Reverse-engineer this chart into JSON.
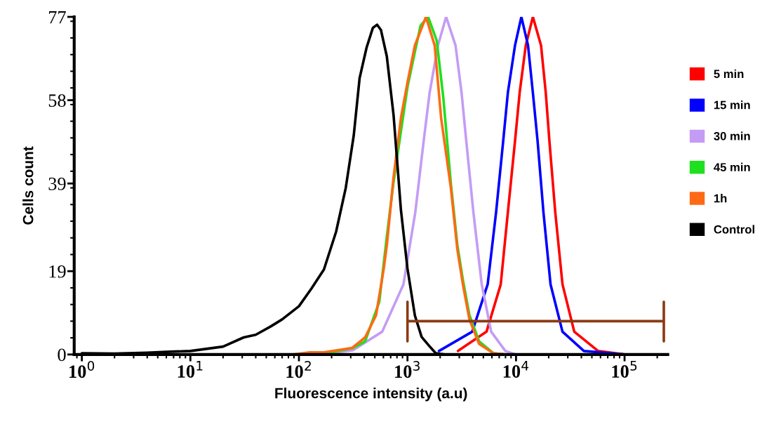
{
  "chart_data": {
    "type": "line",
    "xlabel": "Fluorescence intensity (a.u)",
    "ylabel": "Cells count",
    "log": "x",
    "legend": "right",
    "grid": false,
    "xlim": [
      0.85,
      250000
    ],
    "xticks": [
      {
        "value": 1,
        "label": "10$^{0}$"
      },
      {
        "value": 10,
        "label": "10$^{1}$"
      },
      {
        "value": 100,
        "label": "10$^{2}$"
      },
      {
        "value": 1000,
        "label": "10$^{3}$"
      },
      {
        "value": 10000,
        "label": "10$^{4}$"
      },
      {
        "value": 100000,
        "label": "10$^{5}$"
      }
    ],
    "ylim": [
      0,
      77
    ],
    "yticks": [
      0,
      19,
      39,
      58,
      77
    ],
    "series": [
      {
        "name": "5 min",
        "color": "#ff0000",
        "x": [
          2920,
          5350,
          7230,
          8410,
          9790,
          10800,
          12300,
          14300,
          17000,
          18800,
          20300,
          23000,
          26800,
          34400,
          57000,
          100000
        ],
        "values": [
          0.8,
          5.2,
          16,
          32.4,
          48.7,
          59.7,
          70.5,
          77,
          70.5,
          59.7,
          48.7,
          32.4,
          16,
          5.2,
          0.8,
          0
        ]
      },
      {
        "name": "15 min",
        "color": "#0000ff",
        "x": [
          1950,
          3950,
          5480,
          6550,
          7620,
          8410,
          9790,
          11200,
          12900,
          14300,
          15800,
          17900,
          20800,
          26800,
          42200,
          100000
        ],
        "values": [
          0.8,
          5.2,
          16,
          32.4,
          48.7,
          59.7,
          70.5,
          77,
          70.5,
          59.7,
          48.7,
          32.4,
          16,
          5.2,
          0.8,
          0
        ]
      },
      {
        "name": "30 min",
        "color": "#c49cf4",
        "x": [
          158,
          316,
          585,
          918,
          1180,
          1410,
          1600,
          1910,
          2270,
          2770,
          3150,
          3480,
          4050,
          4830,
          5900,
          7980,
          10000
        ],
        "values": [
          0,
          1,
          5.2,
          16,
          32.4,
          48.7,
          59.7,
          70.5,
          77,
          70.5,
          59.7,
          48.7,
          32.4,
          16,
          5.2,
          0.8,
          0
        ]
      },
      {
        "name": "45 min",
        "color": "#1ee01e",
        "x": [
          126,
          200,
          316,
          407,
          550,
          646,
          741,
          871,
          1000,
          1170,
          1320,
          1550,
          1860,
          2140,
          2510,
          2880,
          3240,
          3720,
          4570,
          6170,
          7940
        ],
        "values": [
          0,
          0.5,
          1.5,
          3,
          12,
          27,
          39,
          51,
          61,
          69,
          75,
          77,
          71.6,
          58.5,
          39,
          25,
          17,
          9,
          3,
          0.3,
          0
        ]
      },
      {
        "name": "1h",
        "color": "#ff6a14",
        "x": [
          89,
          126,
          170,
          309,
          407,
          513,
          603,
          646,
          741,
          871,
          1000,
          1170,
          1480,
          1780,
          2040,
          2510,
          2880,
          3240,
          3720,
          4570,
          6170,
          7940
        ],
        "values": [
          0,
          0.5,
          0.5,
          1.5,
          3.9,
          8.9,
          19.4,
          25,
          40,
          54,
          62,
          70.5,
          77,
          70.5,
          54,
          38,
          24,
          16,
          8,
          2.4,
          0.3,
          0
        ]
      },
      {
        "name": "Control",
        "color": "#000000",
        "x": [
          1,
          2,
          4,
          6,
          10,
          20,
          31,
          40,
          55,
          70,
          100,
          130,
          170,
          220,
          270,
          320,
          362,
          420,
          480,
          525,
          570,
          645,
          745,
          870,
          1000,
          1170,
          1350,
          1580,
          1820,
          2200
        ],
        "values": [
          0.3,
          0.2,
          0.4,
          0.6,
          0.8,
          1.8,
          3.9,
          4.5,
          6.4,
          8,
          11,
          15,
          19.4,
          28,
          38,
          50,
          63,
          70,
          74.5,
          75.2,
          74,
          68,
          54.5,
          33,
          19.6,
          8.9,
          4,
          2,
          0.3,
          0
        ]
      },
      {
        "color": "#8b3a12",
        "x": [
          1000,
          1000,
          1000,
          230000,
          230000,
          230000
        ],
        "values": [
          12,
          3,
          7.6,
          7.6,
          12,
          3
        ]
      }
    ]
  }
}
